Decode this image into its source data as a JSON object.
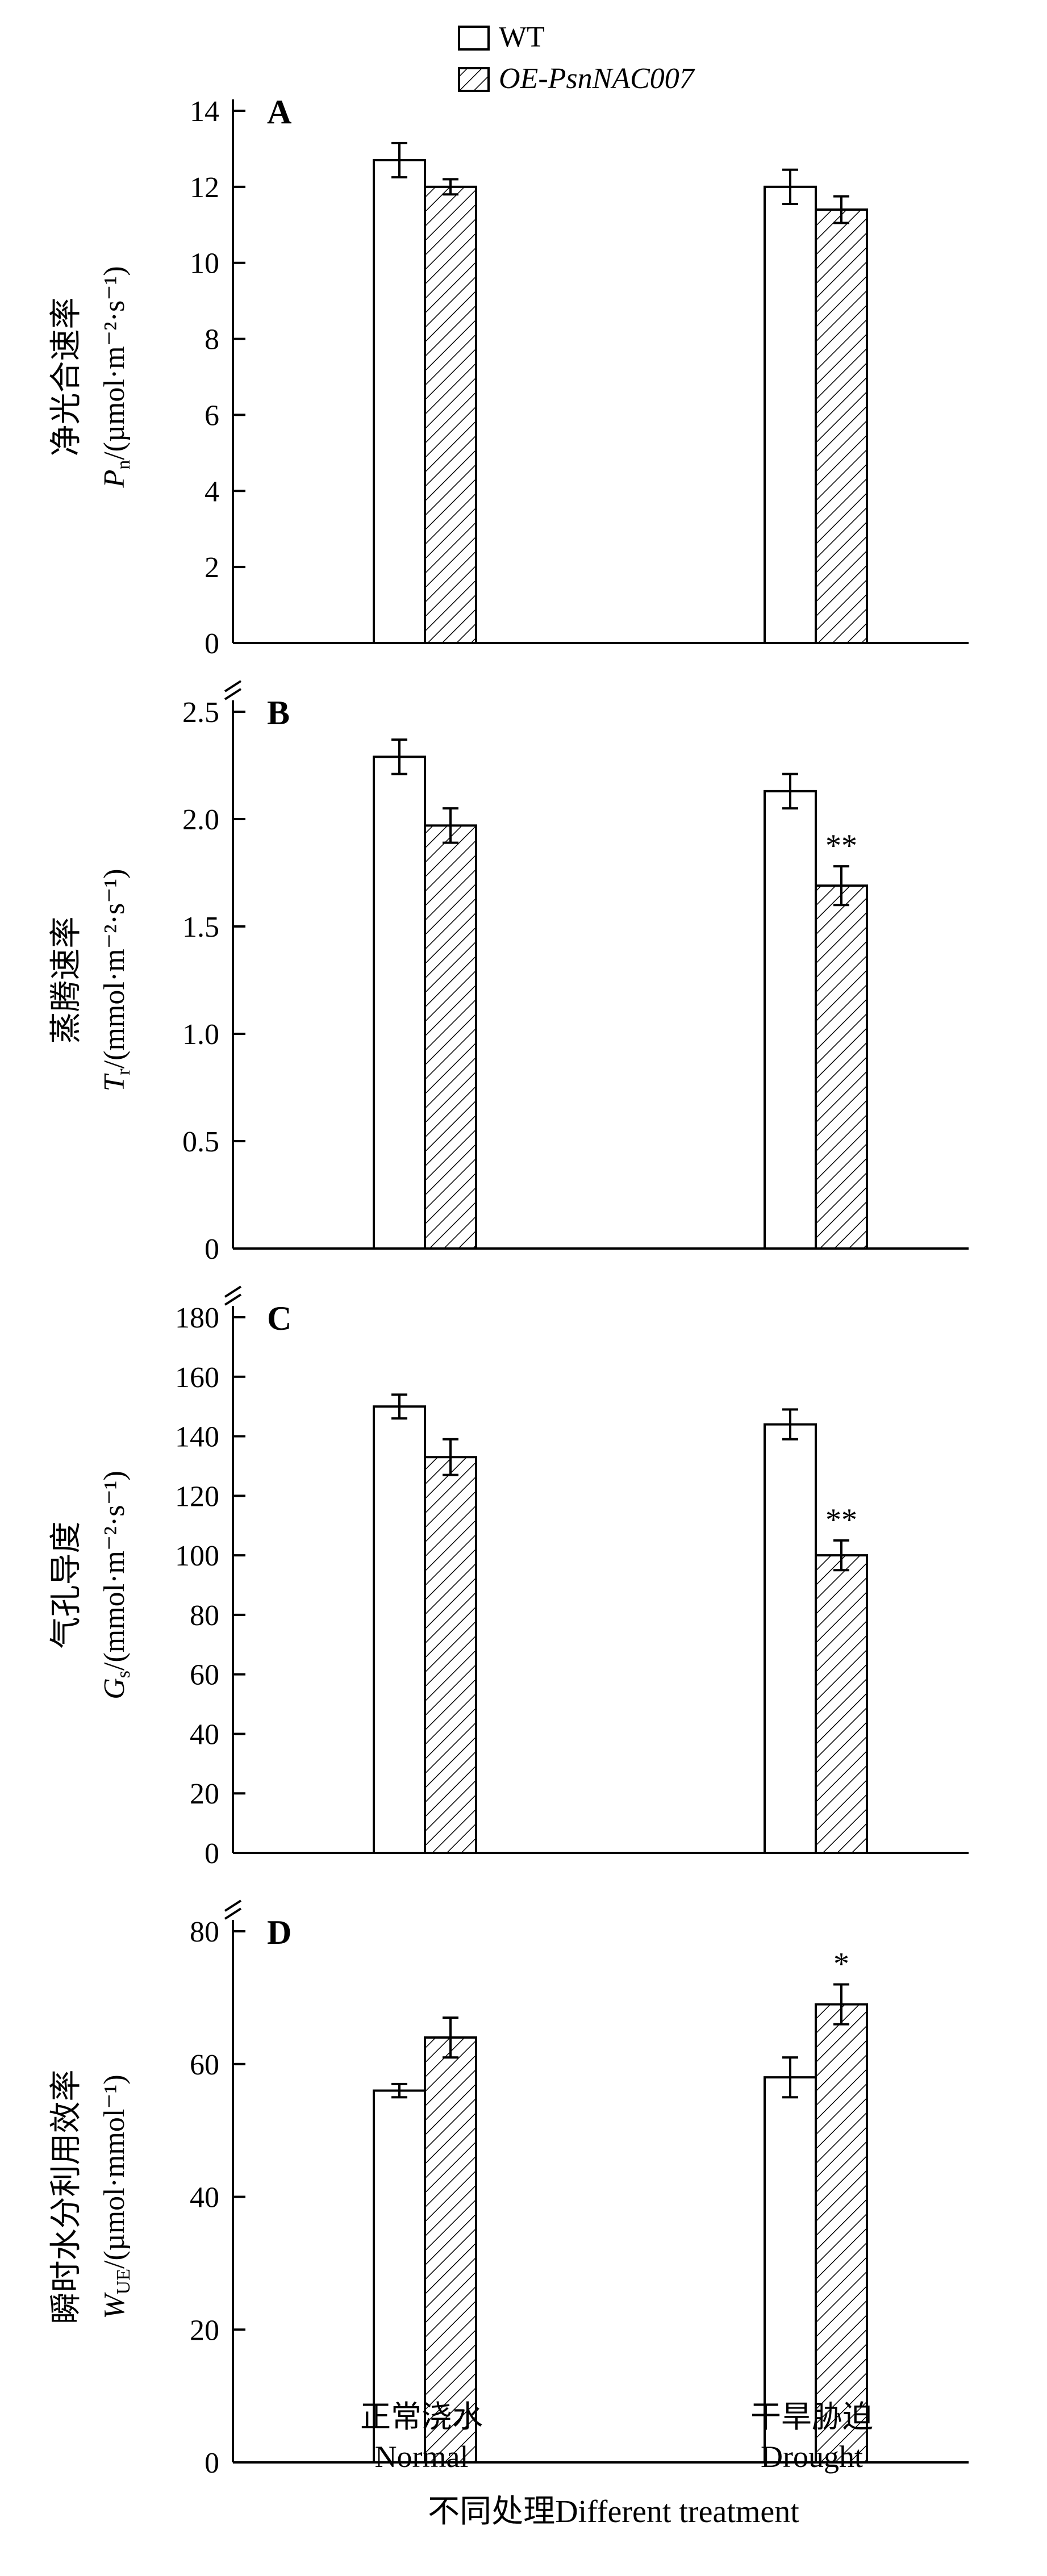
{
  "legend": {
    "placement": "top-center",
    "items": [
      {
        "label": "WT",
        "pattern": "open"
      },
      {
        "label": "OE-PsnNAC007",
        "pattern": "hatched",
        "italic": true
      }
    ]
  },
  "xlabel": "不同处理Different treatment",
  "categories": [
    {
      "zh": "正常浇水",
      "en": "Normal"
    },
    {
      "zh": "干旱胁迫",
      "en": "Drought"
    }
  ],
  "colors": {
    "bar_fill_wt": "#ffffff",
    "stroke": "#000000"
  },
  "chart_data": [
    {
      "type": "bar",
      "panel": "A",
      "ylabel_zh": "净光合速率",
      "ylabel_sym": "P",
      "ylabel_sub": "n",
      "ylabel_unit": "/(µmol·m⁻²·s⁻¹)",
      "ylim": [
        0,
        14
      ],
      "yticks": [
        "0",
        "2",
        "4",
        "6",
        "8",
        "10",
        "12",
        "14"
      ],
      "categories": [
        "Normal",
        "Drought"
      ],
      "series": [
        {
          "name": "WT",
          "values": [
            12.7,
            12.0
          ],
          "errors": [
            0.45,
            0.45
          ],
          "sig": [
            "",
            ""
          ]
        },
        {
          "name": "OE-PsnNAC007",
          "values": [
            12.0,
            11.4
          ],
          "errors": [
            0.2,
            0.35
          ],
          "sig": [
            "",
            ""
          ]
        }
      ]
    },
    {
      "type": "bar",
      "panel": "B",
      "ylabel_zh": "蒸腾速率",
      "ylabel_sym": "T",
      "ylabel_sub": "r",
      "ylabel_unit": "/(mmol·m⁻²·s⁻¹)",
      "ylim": [
        0,
        2.5
      ],
      "yticks": [
        "0",
        "0.5",
        "1.0",
        "1.5",
        "2.0",
        "2.5"
      ],
      "categories": [
        "Normal",
        "Drought"
      ],
      "series": [
        {
          "name": "WT",
          "values": [
            2.29,
            2.13
          ],
          "errors": [
            0.08,
            0.08
          ],
          "sig": [
            "",
            ""
          ]
        },
        {
          "name": "OE-PsnNAC007",
          "values": [
            1.97,
            1.69
          ],
          "errors": [
            0.08,
            0.09
          ],
          "sig": [
            "",
            "**"
          ]
        }
      ]
    },
    {
      "type": "bar",
      "panel": "C",
      "ylabel_zh": "气孔导度",
      "ylabel_sym": "G",
      "ylabel_sub": "s",
      "ylabel_unit": "/(mmol·m⁻²·s⁻¹)",
      "ylim": [
        0,
        180
      ],
      "yticks": [
        "0",
        "20",
        "40",
        "60",
        "80",
        "100",
        "120",
        "140",
        "160",
        "180"
      ],
      "categories": [
        "Normal",
        "Drought"
      ],
      "series": [
        {
          "name": "WT",
          "values": [
            150,
            144
          ],
          "errors": [
            4,
            5
          ],
          "sig": [
            "",
            ""
          ]
        },
        {
          "name": "OE-PsnNAC007",
          "values": [
            133,
            100
          ],
          "errors": [
            6,
            5
          ],
          "sig": [
            "",
            "**"
          ]
        }
      ]
    },
    {
      "type": "bar",
      "panel": "D",
      "ylabel_zh": "瞬时水分利用效率",
      "ylabel_sym": "W",
      "ylabel_sub": "UE",
      "ylabel_unit": "/(µmol·mmol⁻¹)",
      "ylim": [
        0,
        80
      ],
      "yticks": [
        "0",
        "20",
        "40",
        "60",
        "80"
      ],
      "categories": [
        "Normal",
        "Drought"
      ],
      "series": [
        {
          "name": "WT",
          "values": [
            56,
            58
          ],
          "errors": [
            1,
            3
          ],
          "sig": [
            "",
            ""
          ]
        },
        {
          "name": "OE-PsnNAC007",
          "values": [
            64,
            69
          ],
          "errors": [
            3,
            3
          ],
          "sig": [
            "",
            "*"
          ]
        }
      ]
    }
  ]
}
